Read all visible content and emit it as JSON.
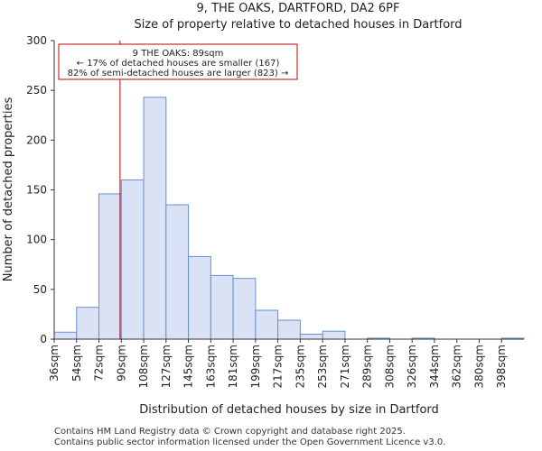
{
  "chart_data": {
    "type": "bar",
    "title": "9, THE OAKS, DARTFORD, DA2 6PF",
    "subtitle": "Size of property relative to detached houses in Dartford",
    "xlabel": "Distribution of detached houses by size in Dartford",
    "ylabel": "Number of detached properties",
    "ylim": [
      0,
      300
    ],
    "yticks": [
      0,
      50,
      100,
      150,
      200,
      250,
      300
    ],
    "categories": [
      "36sqm",
      "54sqm",
      "72sqm",
      "90sqm",
      "108sqm",
      "127sqm",
      "145sqm",
      "163sqm",
      "181sqm",
      "199sqm",
      "217sqm",
      "235sqm",
      "253sqm",
      "271sqm",
      "289sqm",
      "308sqm",
      "326sqm",
      "344sqm",
      "362sqm",
      "380sqm",
      "398sqm"
    ],
    "values": [
      7,
      32,
      146,
      160,
      243,
      135,
      83,
      64,
      61,
      29,
      19,
      5,
      8,
      0,
      1,
      0,
      1,
      0,
      0,
      0,
      1
    ],
    "bar_color": "#dae3f5",
    "bar_edge_color": "#6b8fc9",
    "marker": {
      "value_sqm": 89,
      "color": "#c00000",
      "annotation": [
        "9 THE OAKS: 89sqm",
        "← 17% of detached houses are smaller (167)",
        "82% of semi-detached houses are larger (823) →"
      ]
    },
    "grid": false
  },
  "footer": {
    "line1": "Contains HM Land Registry data © Crown copyright and database right 2025.",
    "line2": "Contains public sector information licensed under the Open Government Licence v3.0."
  }
}
